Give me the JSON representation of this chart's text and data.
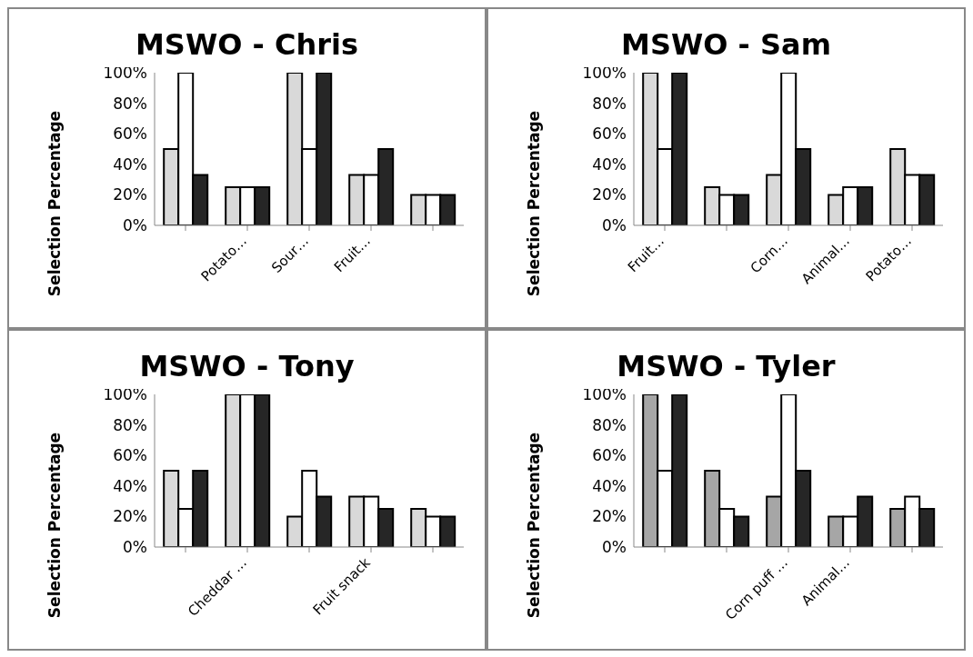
{
  "chart_data": [
    {
      "type": "bar",
      "title": "MSWO - Chris",
      "ylabel": "Selection Percentage",
      "categories": [
        null,
        "Potato…",
        "Sour…",
        "Fruit…",
        null
      ],
      "series": [
        {
          "color": "#d9d9d9",
          "values": [
            50,
            25,
            100,
            33,
            20
          ]
        },
        {
          "color": "#ffffff",
          "values": [
            100,
            25,
            50,
            33,
            20
          ]
        },
        {
          "color": "#262626",
          "values": [
            33,
            25,
            100,
            50,
            20
          ]
        }
      ],
      "ylim": [
        0,
        100
      ],
      "yticks": [
        {
          "value": 0,
          "label": "0%"
        },
        {
          "value": 20,
          "label": "20%"
        },
        {
          "value": 40,
          "label": "40%"
        },
        {
          "value": 60,
          "label": "60%"
        },
        {
          "value": 80,
          "label": "80%"
        },
        {
          "value": 100,
          "label": "100%"
        }
      ],
      "grid": false,
      "legend": false
    },
    {
      "type": "bar",
      "title": "MSWO - Sam",
      "ylabel": "Selection Percentage",
      "categories": [
        "Fruit…",
        null,
        "Corn…",
        "Animal…",
        "Potato…"
      ],
      "series": [
        {
          "color": "#d9d9d9",
          "values": [
            100,
            25,
            33,
            20,
            50
          ]
        },
        {
          "color": "#ffffff",
          "values": [
            50,
            20,
            100,
            25,
            33
          ]
        },
        {
          "color": "#262626",
          "values": [
            100,
            20,
            50,
            25,
            33
          ]
        }
      ],
      "ylim": [
        0,
        100
      ],
      "yticks": [
        {
          "value": 0,
          "label": "0%"
        },
        {
          "value": 20,
          "label": "20%"
        },
        {
          "value": 40,
          "label": "40%"
        },
        {
          "value": 60,
          "label": "60%"
        },
        {
          "value": 80,
          "label": "80%"
        },
        {
          "value": 100,
          "label": "100%"
        }
      ],
      "grid": false,
      "legend": false
    },
    {
      "type": "bar",
      "title": "MSWO - Tony",
      "ylabel": "Selection Percentage",
      "categories": [
        null,
        "Cheddar …",
        null,
        "Fruit snack",
        null
      ],
      "series": [
        {
          "color": "#d9d9d9",
          "values": [
            50,
            100,
            20,
            33,
            25
          ]
        },
        {
          "color": "#ffffff",
          "values": [
            25,
            100,
            50,
            33,
            20
          ]
        },
        {
          "color": "#262626",
          "values": [
            50,
            100,
            33,
            25,
            20
          ]
        }
      ],
      "ylim": [
        0,
        100
      ],
      "yticks": [
        {
          "value": 0,
          "label": "0%"
        },
        {
          "value": 20,
          "label": "20%"
        },
        {
          "value": 40,
          "label": "40%"
        },
        {
          "value": 60,
          "label": "60%"
        },
        {
          "value": 80,
          "label": "80%"
        },
        {
          "value": 100,
          "label": "100%"
        }
      ],
      "grid": false,
      "legend": false
    },
    {
      "type": "bar",
      "title": "MSWO - Tyler",
      "ylabel": "Selection Percentage",
      "categories": [
        null,
        null,
        "Corn puff …",
        "Animal…",
        null
      ],
      "series": [
        {
          "color": "#a6a6a6",
          "values": [
            100,
            50,
            33,
            20,
            25
          ]
        },
        {
          "color": "#ffffff",
          "values": [
            50,
            25,
            100,
            20,
            33
          ]
        },
        {
          "color": "#262626",
          "values": [
            100,
            20,
            50,
            33,
            25
          ]
        }
      ],
      "ylim": [
        0,
        100
      ],
      "yticks": [
        {
          "value": 0,
          "label": "0%"
        },
        {
          "value": 20,
          "label": "20%"
        },
        {
          "value": 40,
          "label": "40%"
        },
        {
          "value": 60,
          "label": "60%"
        },
        {
          "value": 80,
          "label": "80%"
        },
        {
          "value": 100,
          "label": "100%"
        }
      ],
      "grid": false,
      "legend": false
    }
  ]
}
